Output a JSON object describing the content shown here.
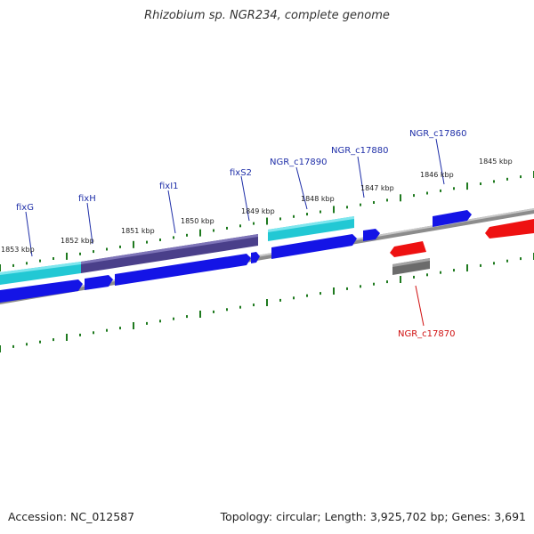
{
  "title": "Rhizobium sp. NGR234, complete genome",
  "footer": {
    "accession": "Accession: NC_012587",
    "topology": "Topology: circular; Length: 3,925,702 bp; Genes: 3,691"
  },
  "colors": {
    "backbone": "#8c8c8c",
    "tick": "#1f7a1f",
    "gene_label": "#1f2fa8",
    "gene_label_minus": "#d01010",
    "plus_cds": "#1414e6",
    "minus_cds": "#ee1111",
    "cyan_feature": "#22c8d4",
    "purple_feature": "#4a3f8a",
    "gray_feature": "#6b6b6b"
  },
  "scale": {
    "unit": "kbp",
    "major_ticks": [
      "1853 kbp",
      "1852 kbp",
      "1851 kbp",
      "1850 kbp",
      "1849 kbp",
      "1848 kbp",
      "1847 kbp",
      "1846 kbp",
      "1845 kbp"
    ]
  },
  "gene_labels": [
    "fixG",
    "fixH",
    "fixI1",
    "fixS2",
    "NGR_c17890",
    "NGR_c17880",
    "NGR_c17860",
    "NGR_c17870"
  ]
}
